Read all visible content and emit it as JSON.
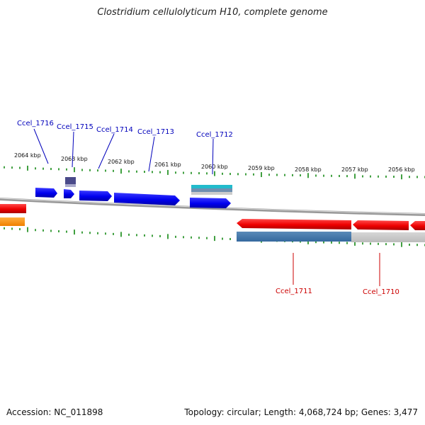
{
  "title": "Clostridium cellulolyticum H10, complete genome",
  "footer": {
    "accession": "Accession: NC_011898",
    "summary": "Topology: circular; Length: 4,068,724 bp; Genes: 3,477"
  },
  "colors": {
    "forward_gene": "#0000ee",
    "reverse_gene": "#ee0000",
    "tick": "#118811",
    "backbone": "#888888",
    "forward_label": "#0000bb",
    "reverse_label": "#cc0000"
  },
  "kbp_labels": [
    "2064 kbp",
    "2063 kbp",
    "2062 kbp",
    "2061 kbp",
    "2060 kbp",
    "2059 kbp",
    "2058 kbp",
    "2057 kbp",
    "2056 kbp"
  ],
  "gene_labels": {
    "forward": [
      "Ccel_1716",
      "Ccel_1715",
      "Ccel_1714",
      "Ccel_1713",
      "Ccel_1712"
    ],
    "reverse": [
      "Ccel_1711",
      "Ccel_1710"
    ]
  }
}
